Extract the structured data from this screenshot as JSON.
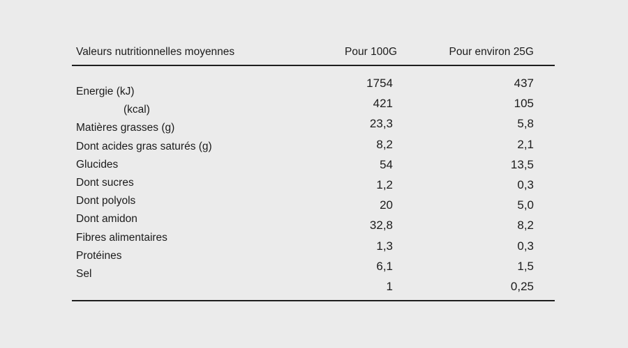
{
  "table": {
    "headers": [
      "Valeurs nutritionnelles moyennes",
      "Pour 100G",
      "Pour environ 25G"
    ],
    "rows": [
      {
        "label": "Energie (kJ)",
        "indent": false,
        "per100": "1754",
        "per25": "437"
      },
      {
        "label": "(kcal)",
        "indent": true,
        "per100": "421",
        "per25": "105"
      },
      {
        "label": "Matières grasses (g)",
        "indent": false,
        "per100": "23,3",
        "per25": "5,8"
      },
      {
        "label": "Dont acides gras saturés (g)",
        "indent": false,
        "per100": "8,2",
        "per25": "2,1"
      },
      {
        "label": "Glucides",
        "indent": false,
        "per100": "54",
        "per25": "13,5"
      },
      {
        "label": "Dont sucres",
        "indent": false,
        "per100": "1,2",
        "per25": "0,3"
      },
      {
        "label": "Dont polyols",
        "indent": false,
        "per100": "20",
        "per25": "5,0"
      },
      {
        "label": "Dont amidon",
        "indent": false,
        "per100": "32,8",
        "per25": "8,2"
      },
      {
        "label": "Fibres alimentaires",
        "indent": false,
        "per100": "1,3",
        "per25": "0,3"
      },
      {
        "label": "Protéines",
        "indent": false,
        "per100": "6,1",
        "per25": "1,5"
      },
      {
        "label": "Sel",
        "indent": false,
        "per100": "1",
        "per25": "0,25"
      }
    ],
    "colors": {
      "background": "#ebebeb",
      "text": "#1b1b1b",
      "rule": "#1d1d1d"
    }
  }
}
